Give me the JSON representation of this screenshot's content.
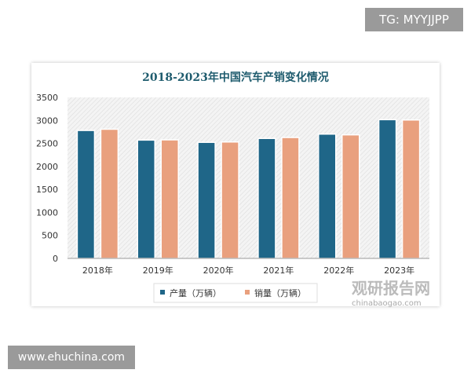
{
  "overlay": {
    "tg_label": "TG: MYYJJPP",
    "site_label": "www.ehuchina.com",
    "watermark_cn": "观研报告网",
    "watermark_en": "chinabaogao.com"
  },
  "colors": {
    "production": "#1f6688",
    "sales": "#e9a07e",
    "title": "#1f5c6e"
  },
  "chart_data": {
    "type": "bar",
    "title": "2018-2023年中国汽车产销变化情况",
    "categories": [
      "2018年",
      "2019年",
      "2020年",
      "2021年",
      "2022年",
      "2023年"
    ],
    "series": [
      {
        "name": "产量（万辆）",
        "values": [
          2781,
          2572,
          2523,
          2608,
          2702,
          3016
        ]
      },
      {
        "name": "销量（万辆）",
        "values": [
          2808,
          2577,
          2531,
          2628,
          2686,
          3009
        ]
      }
    ],
    "yticks": [
      "0",
      "500",
      "1000",
      "1500",
      "2000",
      "2500",
      "3000",
      "3500"
    ],
    "ylim": [
      0,
      3500
    ],
    "xlabel": "",
    "ylabel": "",
    "legend": "bottom"
  }
}
